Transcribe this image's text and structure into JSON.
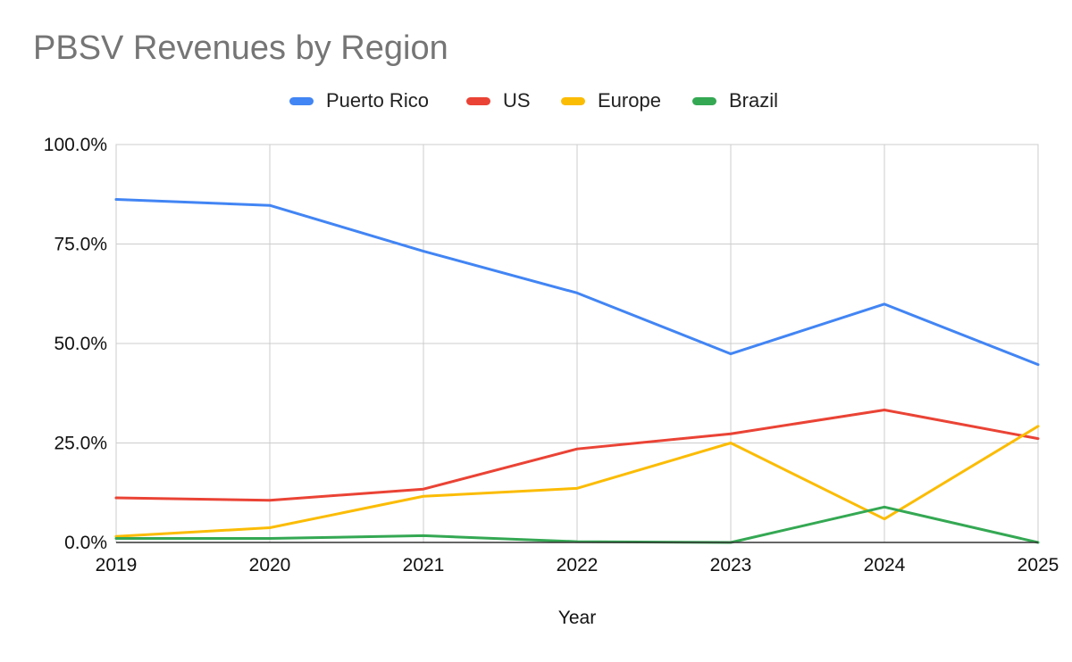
{
  "chart_data": {
    "type": "line",
    "title": "PBSV Revenues by Region",
    "xlabel": "Year",
    "ylabel": "",
    "x": [
      "2019",
      "2020",
      "2021",
      "2022",
      "2023",
      "2024",
      "2025"
    ],
    "ylim": [
      0,
      100
    ],
    "y_ticks": [
      0,
      25,
      50,
      75,
      100
    ],
    "y_tick_labels": [
      "0.0%",
      "25.0%",
      "50.0%",
      "75.0%",
      "100.0%"
    ],
    "grid": true,
    "legend_position": "top",
    "series": [
      {
        "name": "Puerto Rico",
        "color": "#4285F4",
        "values": [
          86.2,
          84.7,
          73.2,
          62.7,
          47.4,
          59.9,
          44.7
        ]
      },
      {
        "name": "US",
        "color": "#EA4335",
        "values": [
          11.2,
          10.6,
          13.4,
          23.5,
          27.3,
          33.3,
          26.1
        ]
      },
      {
        "name": "Europe",
        "color": "#FBBC04",
        "values": [
          1.5,
          3.7,
          11.6,
          13.6,
          25.0,
          5.9,
          29.2
        ]
      },
      {
        "name": "Brazil",
        "color": "#34A853",
        "values": [
          1.0,
          1.0,
          1.7,
          0.2,
          0.0,
          8.9,
          0.0
        ]
      }
    ]
  }
}
